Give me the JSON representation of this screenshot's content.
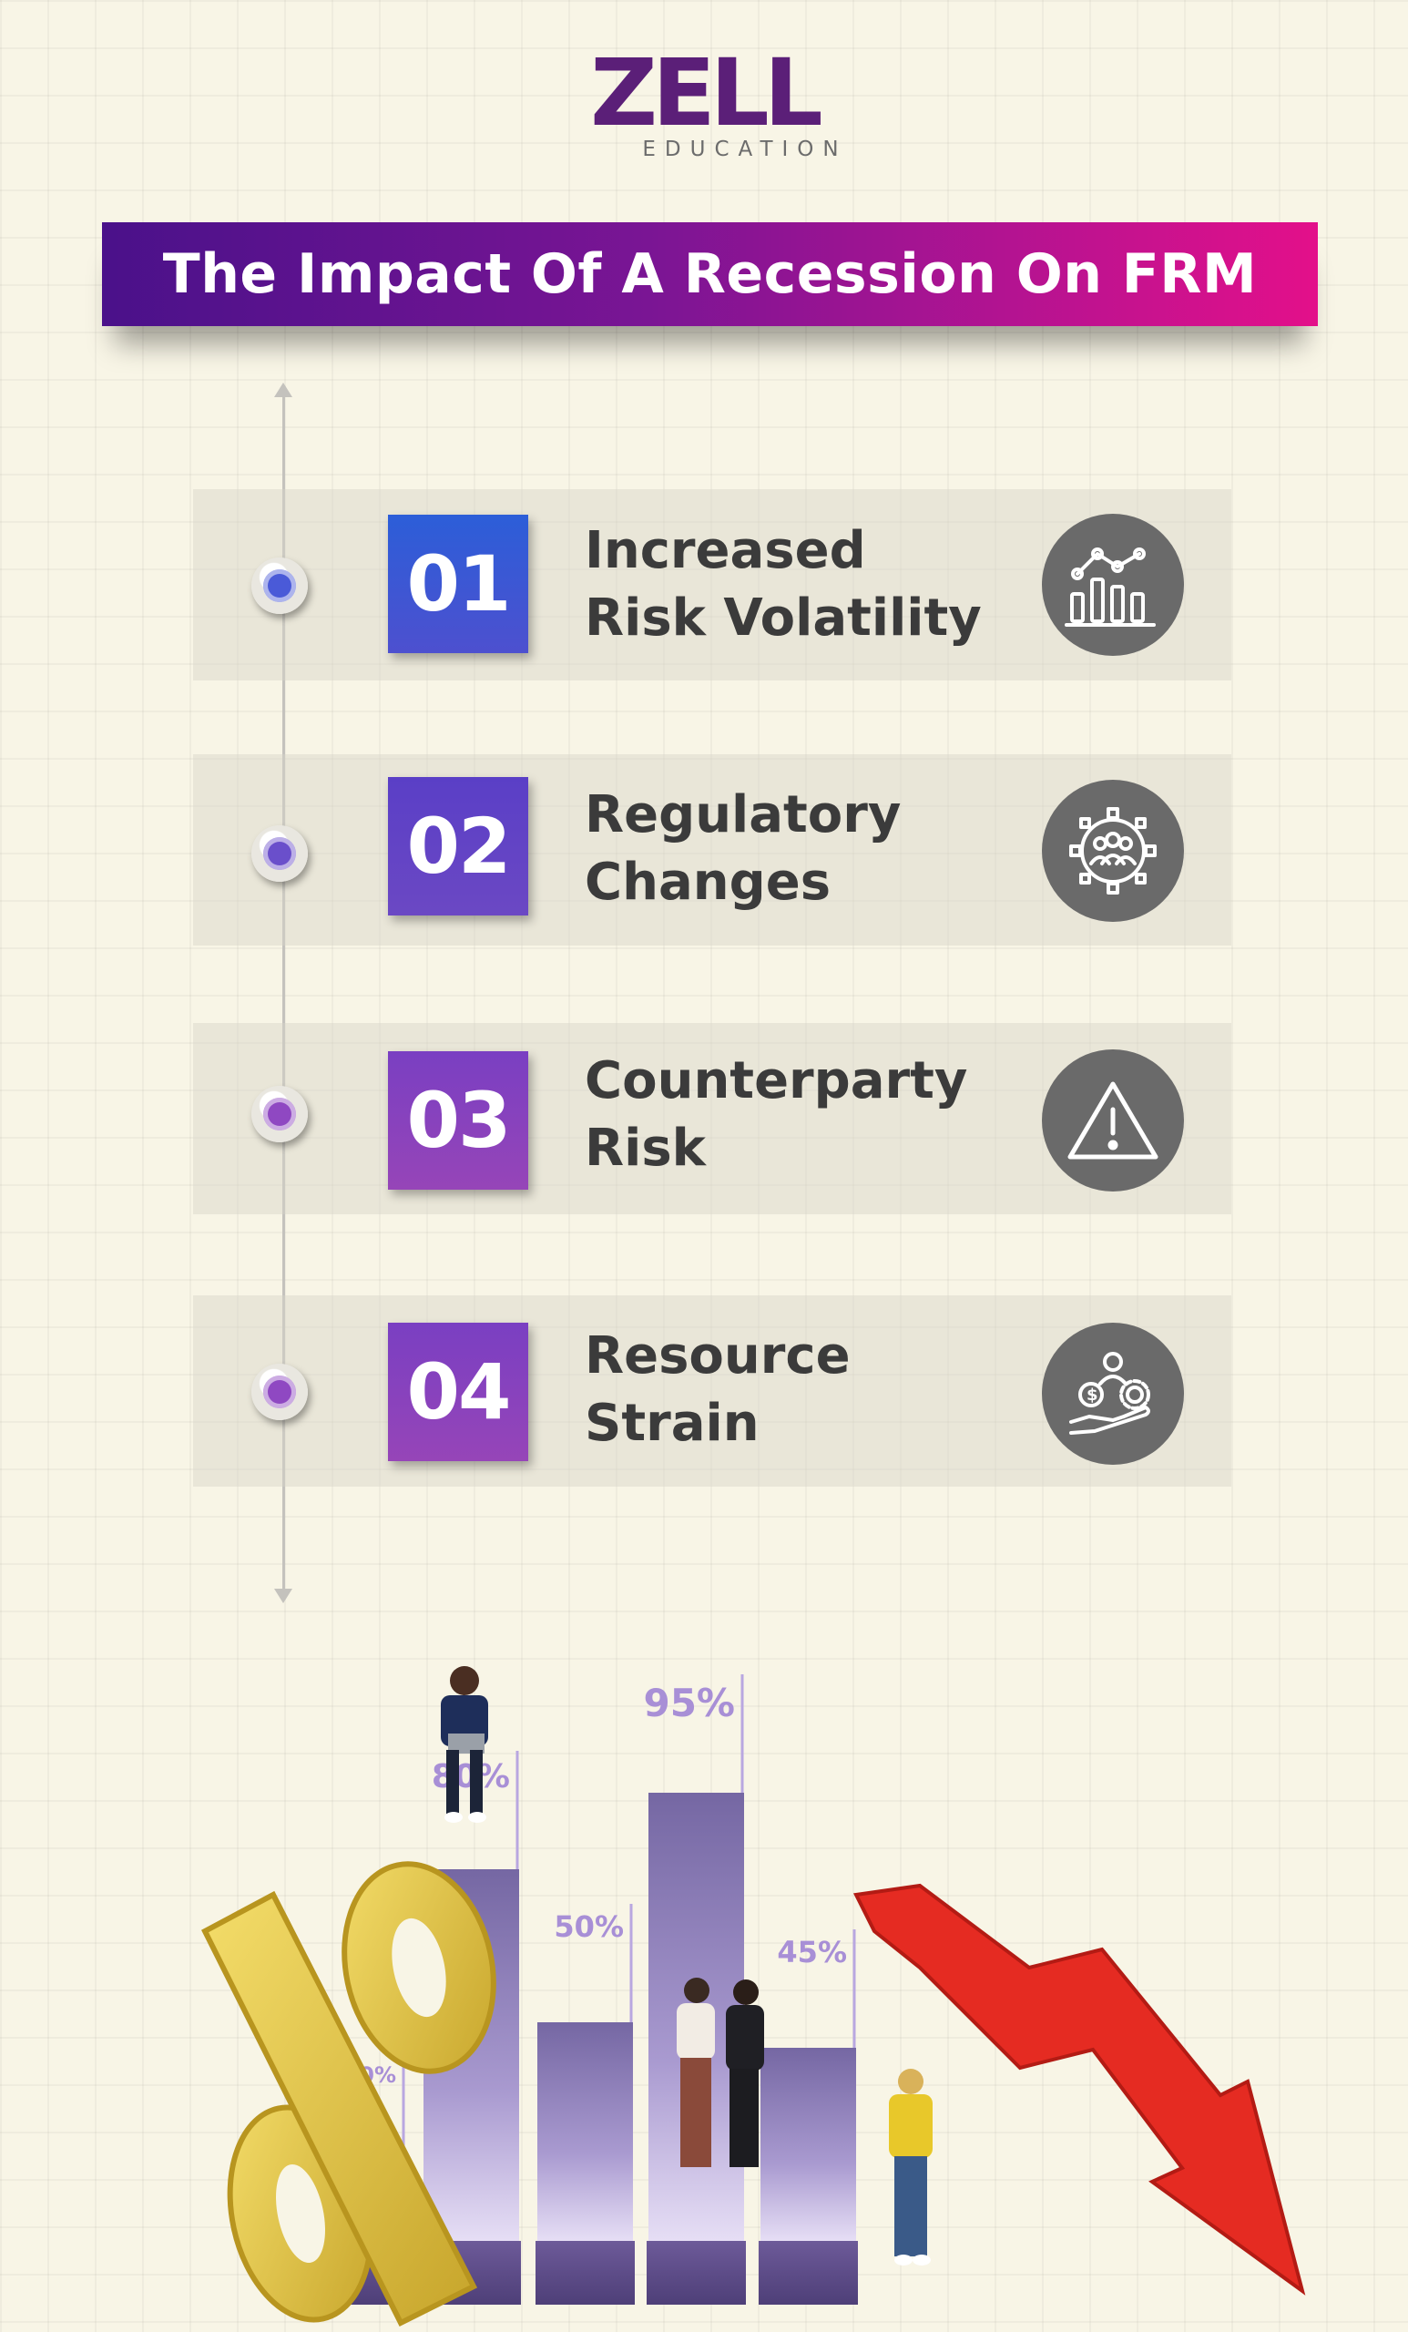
{
  "logo": {
    "word": "ZELL",
    "sub": "EDUCATION"
  },
  "title": "The Impact Of A Recession On FRM",
  "items": [
    {
      "number": "01",
      "line1": "Increased",
      "line2": "Risk Volatility",
      "icon": "bar-chart-trend-icon",
      "box_color": "#3d5ad6",
      "dot_color": "#4a5ad8"
    },
    {
      "number": "02",
      "line1": "Regulatory",
      "line2": "Changes",
      "icon": "gear-people-icon",
      "box_color": "#5a43c4",
      "dot_color": "#6a4fcb"
    },
    {
      "number": "03",
      "line1": "Counterparty",
      "line2": "Risk",
      "icon": "warning-triangle-icon",
      "box_color": "#8a3fba",
      "dot_color": "#8f48c2"
    },
    {
      "number": "04",
      "line1": "Resource",
      "line2": "Strain",
      "icon": "hand-money-gear-icon",
      "box_color": "#8a3fba",
      "dot_color": "#8f48c2"
    }
  ],
  "chart_data": {
    "type": "bar",
    "categories": [
      "",
      "",
      "",
      "",
      ""
    ],
    "values": [
      20,
      80,
      50,
      95,
      45
    ],
    "labels": [
      "20%",
      "80%",
      "50%",
      "95%",
      "45%"
    ],
    "ylim": [
      0,
      100
    ],
    "colors": {
      "bar": "#7b6aa8",
      "label": "#a88fd6",
      "trend_arrow": "#e52b22",
      "percent_symbol": "#e8c84a"
    }
  }
}
